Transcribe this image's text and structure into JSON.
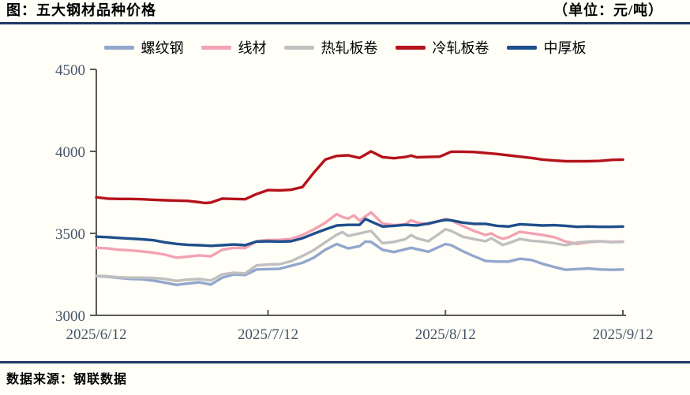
{
  "header": {
    "title": "图：五大钢材品种价格",
    "unit_label": "（单位：元/吨）"
  },
  "footer": {
    "source": "数据来源：钢联数据"
  },
  "colors": {
    "rule_navy": "#1F3864",
    "background": "#FFFEF7"
  },
  "chart_data": {
    "type": "line",
    "title": "五大钢材品种价格",
    "unit": "元/吨",
    "legend_position": "top",
    "grid": false,
    "axis_color": "#595959",
    "tick_label_color": "#44546A",
    "ylim": [
      3000,
      4500
    ],
    "y_ticks": [
      3000,
      3500,
      4000,
      4500
    ],
    "x_range_days": [
      0,
      92
    ],
    "x_tick_days": [
      0,
      30,
      61,
      92
    ],
    "x_tick_labels": [
      "2025/6/12",
      "2025/7/12",
      "2025/8/12",
      "2025/9/12"
    ],
    "series": [
      {
        "name": "螺纹钢",
        "color": "#92A7CE",
        "points": [
          [
            0,
            3240
          ],
          [
            2,
            3235
          ],
          [
            4,
            3228
          ],
          [
            6,
            3222
          ],
          [
            8,
            3220
          ],
          [
            10,
            3212
          ],
          [
            12,
            3200
          ],
          [
            14,
            3186
          ],
          [
            16,
            3194
          ],
          [
            18,
            3202
          ],
          [
            20,
            3188
          ],
          [
            22,
            3230
          ],
          [
            24,
            3250
          ],
          [
            26,
            3246
          ],
          [
            28,
            3280
          ],
          [
            30,
            3282
          ],
          [
            32,
            3284
          ],
          [
            34,
            3302
          ],
          [
            36,
            3320
          ],
          [
            38,
            3352
          ],
          [
            40,
            3400
          ],
          [
            42,
            3435
          ],
          [
            44,
            3408
          ],
          [
            46,
            3422
          ],
          [
            47,
            3450
          ],
          [
            48,
            3448
          ],
          [
            50,
            3400
          ],
          [
            52,
            3386
          ],
          [
            55,
            3412
          ],
          [
            58,
            3388
          ],
          [
            61,
            3435
          ],
          [
            62,
            3428
          ],
          [
            64,
            3392
          ],
          [
            66,
            3360
          ],
          [
            68,
            3332
          ],
          [
            70,
            3328
          ],
          [
            72,
            3328
          ],
          [
            74,
            3345
          ],
          [
            76,
            3338
          ],
          [
            78,
            3314
          ],
          [
            80,
            3295
          ],
          [
            82,
            3278
          ],
          [
            84,
            3282
          ],
          [
            86,
            3286
          ],
          [
            88,
            3280
          ],
          [
            90,
            3278
          ],
          [
            92,
            3280
          ]
        ]
      },
      {
        "name": "线材",
        "color": "#F3A2B2",
        "points": [
          [
            0,
            3412
          ],
          [
            2,
            3408
          ],
          [
            4,
            3400
          ],
          [
            6,
            3396
          ],
          [
            8,
            3390
          ],
          [
            10,
            3382
          ],
          [
            12,
            3370
          ],
          [
            14,
            3352
          ],
          [
            16,
            3358
          ],
          [
            18,
            3366
          ],
          [
            20,
            3360
          ],
          [
            22,
            3400
          ],
          [
            24,
            3412
          ],
          [
            26,
            3410
          ],
          [
            28,
            3452
          ],
          [
            30,
            3460
          ],
          [
            32,
            3460
          ],
          [
            34,
            3466
          ],
          [
            36,
            3490
          ],
          [
            38,
            3524
          ],
          [
            40,
            3565
          ],
          [
            42,
            3618
          ],
          [
            43,
            3600
          ],
          [
            44,
            3590
          ],
          [
            45,
            3610
          ],
          [
            46,
            3578
          ],
          [
            48,
            3628
          ],
          [
            50,
            3560
          ],
          [
            52,
            3550
          ],
          [
            54,
            3556
          ],
          [
            55,
            3580
          ],
          [
            56,
            3566
          ],
          [
            58,
            3556
          ],
          [
            60,
            3576
          ],
          [
            61,
            3588
          ],
          [
            62,
            3580
          ],
          [
            64,
            3545
          ],
          [
            66,
            3515
          ],
          [
            68,
            3490
          ],
          [
            69,
            3500
          ],
          [
            70,
            3480
          ],
          [
            71,
            3467
          ],
          [
            72,
            3476
          ],
          [
            74,
            3510
          ],
          [
            76,
            3500
          ],
          [
            78,
            3490
          ],
          [
            80,
            3477
          ],
          [
            82,
            3450
          ],
          [
            84,
            3436
          ],
          [
            86,
            3446
          ],
          [
            88,
            3452
          ],
          [
            90,
            3448
          ],
          [
            92,
            3450
          ]
        ]
      },
      {
        "name": "热轧板卷",
        "color": "#BFBFBF",
        "points": [
          [
            0,
            3242
          ],
          [
            2,
            3238
          ],
          [
            4,
            3232
          ],
          [
            6,
            3230
          ],
          [
            8,
            3230
          ],
          [
            10,
            3228
          ],
          [
            12,
            3222
          ],
          [
            14,
            3210
          ],
          [
            16,
            3218
          ],
          [
            18,
            3222
          ],
          [
            20,
            3212
          ],
          [
            22,
            3250
          ],
          [
            24,
            3260
          ],
          [
            26,
            3256
          ],
          [
            28,
            3305
          ],
          [
            30,
            3310
          ],
          [
            32,
            3312
          ],
          [
            34,
            3330
          ],
          [
            36,
            3362
          ],
          [
            38,
            3398
          ],
          [
            40,
            3445
          ],
          [
            42,
            3492
          ],
          [
            43,
            3508
          ],
          [
            44,
            3484
          ],
          [
            46,
            3500
          ],
          [
            48,
            3515
          ],
          [
            50,
            3440
          ],
          [
            52,
            3448
          ],
          [
            54,
            3465
          ],
          [
            55,
            3490
          ],
          [
            56,
            3470
          ],
          [
            58,
            3452
          ],
          [
            60,
            3500
          ],
          [
            61,
            3525
          ],
          [
            62,
            3515
          ],
          [
            64,
            3480
          ],
          [
            66,
            3465
          ],
          [
            68,
            3452
          ],
          [
            69,
            3470
          ],
          [
            70,
            3450
          ],
          [
            71,
            3430
          ],
          [
            72,
            3440
          ],
          [
            74,
            3466
          ],
          [
            76,
            3455
          ],
          [
            78,
            3450
          ],
          [
            80,
            3440
          ],
          [
            82,
            3428
          ],
          [
            84,
            3444
          ],
          [
            86,
            3450
          ],
          [
            88,
            3452
          ],
          [
            90,
            3446
          ],
          [
            92,
            3448
          ]
        ]
      },
      {
        "name": "冷轧板卷",
        "color": "#B5121B",
        "points": [
          [
            0,
            3720
          ],
          [
            2,
            3712
          ],
          [
            4,
            3710
          ],
          [
            6,
            3710
          ],
          [
            8,
            3708
          ],
          [
            10,
            3705
          ],
          [
            12,
            3702
          ],
          [
            14,
            3700
          ],
          [
            16,
            3698
          ],
          [
            18,
            3690
          ],
          [
            19,
            3685
          ],
          [
            20,
            3688
          ],
          [
            22,
            3712
          ],
          [
            24,
            3710
          ],
          [
            26,
            3708
          ],
          [
            28,
            3740
          ],
          [
            30,
            3764
          ],
          [
            32,
            3762
          ],
          [
            34,
            3766
          ],
          [
            36,
            3782
          ],
          [
            38,
            3870
          ],
          [
            40,
            3950
          ],
          [
            42,
            3972
          ],
          [
            44,
            3976
          ],
          [
            46,
            3960
          ],
          [
            48,
            4000
          ],
          [
            50,
            3965
          ],
          [
            52,
            3958
          ],
          [
            54,
            3966
          ],
          [
            55,
            3974
          ],
          [
            56,
            3964
          ],
          [
            58,
            3966
          ],
          [
            60,
            3968
          ],
          [
            62,
            3998
          ],
          [
            64,
            3998
          ],
          [
            66,
            3996
          ],
          [
            68,
            3990
          ],
          [
            70,
            3984
          ],
          [
            72,
            3976
          ],
          [
            74,
            3968
          ],
          [
            76,
            3960
          ],
          [
            78,
            3950
          ],
          [
            80,
            3944
          ],
          [
            82,
            3940
          ],
          [
            84,
            3940
          ],
          [
            86,
            3940
          ],
          [
            88,
            3942
          ],
          [
            90,
            3948
          ],
          [
            92,
            3950
          ]
        ]
      },
      {
        "name": "中厚板",
        "color": "#1F4E8C",
        "points": [
          [
            0,
            3480
          ],
          [
            2,
            3477
          ],
          [
            4,
            3472
          ],
          [
            6,
            3468
          ],
          [
            8,
            3464
          ],
          [
            10,
            3458
          ],
          [
            12,
            3445
          ],
          [
            14,
            3436
          ],
          [
            16,
            3430
          ],
          [
            18,
            3428
          ],
          [
            20,
            3424
          ],
          [
            22,
            3428
          ],
          [
            24,
            3432
          ],
          [
            26,
            3428
          ],
          [
            28,
            3450
          ],
          [
            30,
            3452
          ],
          [
            32,
            3450
          ],
          [
            34,
            3452
          ],
          [
            36,
            3470
          ],
          [
            38,
            3498
          ],
          [
            40,
            3524
          ],
          [
            42,
            3548
          ],
          [
            44,
            3552
          ],
          [
            46,
            3552
          ],
          [
            47,
            3588
          ],
          [
            48,
            3572
          ],
          [
            50,
            3542
          ],
          [
            52,
            3546
          ],
          [
            54,
            3552
          ],
          [
            56,
            3548
          ],
          [
            58,
            3560
          ],
          [
            60,
            3576
          ],
          [
            61,
            3582
          ],
          [
            62,
            3580
          ],
          [
            64,
            3566
          ],
          [
            66,
            3558
          ],
          [
            68,
            3558
          ],
          [
            70,
            3546
          ],
          [
            72,
            3542
          ],
          [
            74,
            3556
          ],
          [
            76,
            3552
          ],
          [
            78,
            3548
          ],
          [
            80,
            3550
          ],
          [
            82,
            3546
          ],
          [
            84,
            3540
          ],
          [
            86,
            3542
          ],
          [
            88,
            3540
          ],
          [
            90,
            3540
          ],
          [
            92,
            3542
          ]
        ]
      }
    ]
  }
}
